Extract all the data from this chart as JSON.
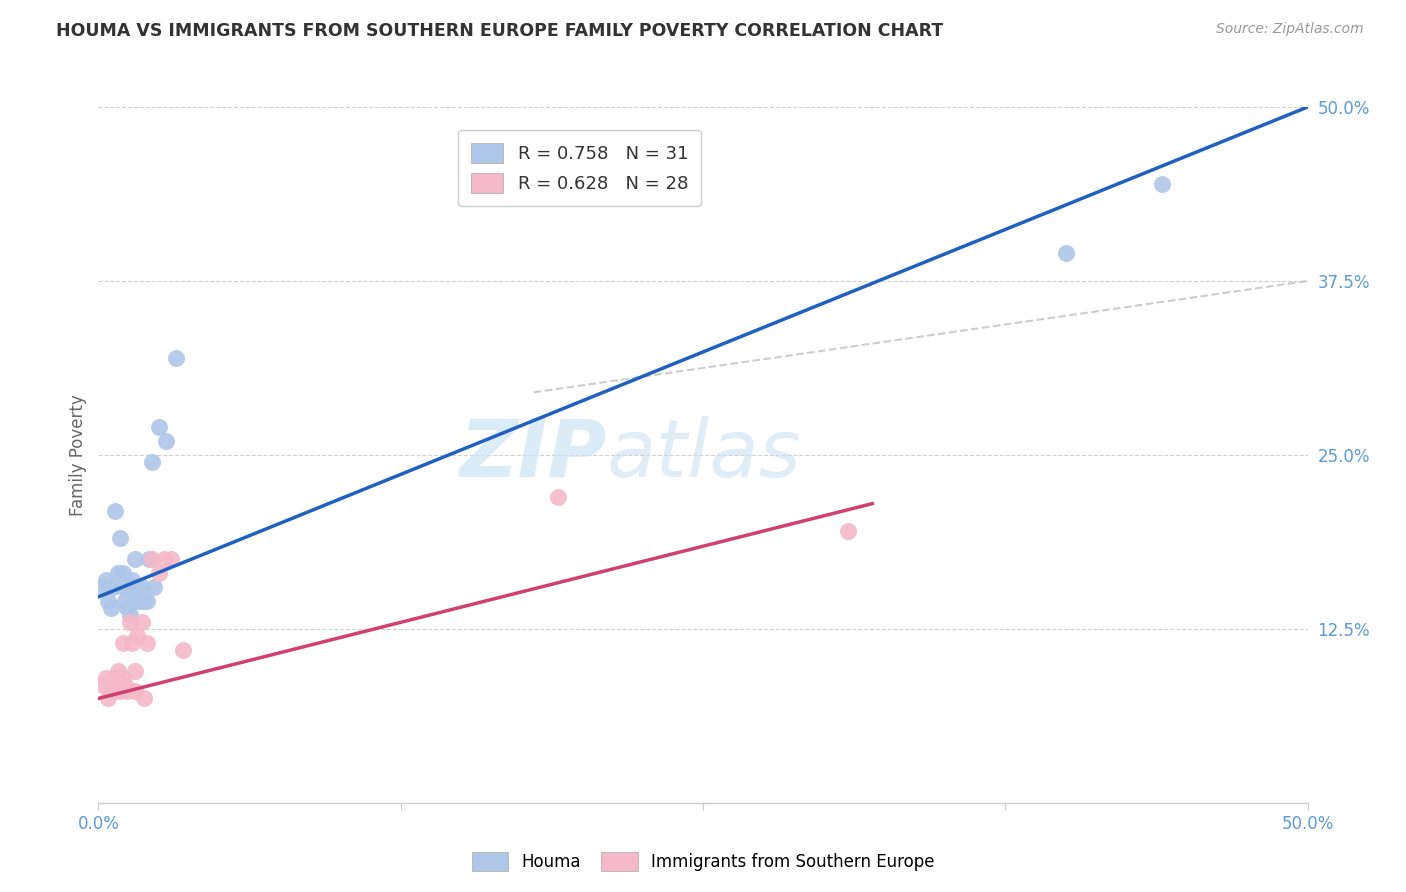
{
  "title": "HOUMA VS IMMIGRANTS FROM SOUTHERN EUROPE FAMILY POVERTY CORRELATION CHART",
  "source": "Source: ZipAtlas.com",
  "ylabel": "Family Poverty",
  "xlim": [
    0,
    0.5
  ],
  "ylim": [
    0,
    0.5
  ],
  "tick_color": "#5b9bd5",
  "grid_color": "#d0d0d0",
  "background_color": "#ffffff",
  "houma_color": "#aec6e8",
  "houma_edge_color": "#aec6e8",
  "houma_line_color": "#2060c0",
  "immigrants_color": "#f5b8c8",
  "immigrants_edge_color": "#f5b8c8",
  "immigrants_line_color": "#d04070",
  "immigrants_dash_color": "#e0a0b0",
  "dash_extension_color": "#c8c8c8",
  "watermark_color": "#cce4f5",
  "houma_scatter_x": [
    0.002,
    0.003,
    0.004,
    0.005,
    0.005,
    0.006,
    0.007,
    0.008,
    0.009,
    0.01,
    0.01,
    0.011,
    0.012,
    0.013,
    0.013,
    0.014,
    0.015,
    0.015,
    0.016,
    0.017,
    0.018,
    0.019,
    0.02,
    0.021,
    0.022,
    0.023,
    0.025,
    0.028,
    0.032,
    0.4,
    0.44
  ],
  "houma_scatter_y": [
    0.155,
    0.16,
    0.145,
    0.155,
    0.14,
    0.155,
    0.21,
    0.165,
    0.19,
    0.155,
    0.165,
    0.145,
    0.14,
    0.155,
    0.135,
    0.16,
    0.145,
    0.175,
    0.155,
    0.145,
    0.155,
    0.145,
    0.145,
    0.175,
    0.245,
    0.155,
    0.27,
    0.26,
    0.32,
    0.395,
    0.445
  ],
  "immigrants_scatter_x": [
    0.002,
    0.003,
    0.004,
    0.005,
    0.006,
    0.006,
    0.007,
    0.008,
    0.009,
    0.01,
    0.01,
    0.011,
    0.012,
    0.013,
    0.014,
    0.015,
    0.015,
    0.016,
    0.018,
    0.019,
    0.02,
    0.022,
    0.025,
    0.027,
    0.03,
    0.035,
    0.19,
    0.31
  ],
  "immigrants_scatter_y": [
    0.085,
    0.09,
    0.075,
    0.085,
    0.08,
    0.09,
    0.085,
    0.095,
    0.08,
    0.09,
    0.115,
    0.085,
    0.08,
    0.13,
    0.115,
    0.095,
    0.08,
    0.12,
    0.13,
    0.075,
    0.115,
    0.175,
    0.165,
    0.175,
    0.175,
    0.11,
    0.22,
    0.195
  ],
  "houma_line_x": [
    0.0,
    0.5
  ],
  "houma_line_y": [
    0.148,
    0.5
  ],
  "immigrants_line_x": [
    0.0,
    0.32
  ],
  "immigrants_line_y": [
    0.075,
    0.215
  ],
  "dash_line_x": [
    0.18,
    0.5
  ],
  "dash_line_y": [
    0.295,
    0.375
  ],
  "ytick_positions": [
    0.125,
    0.25,
    0.375,
    0.5
  ],
  "ytick_labels": [
    "12.5%",
    "25.0%",
    "37.5%",
    "50.0%"
  ],
  "xtick_positions": [
    0.0,
    0.125,
    0.25,
    0.375,
    0.5
  ],
  "xtick_labels": [
    "0.0%",
    "",
    "",
    "",
    "50.0%"
  ]
}
